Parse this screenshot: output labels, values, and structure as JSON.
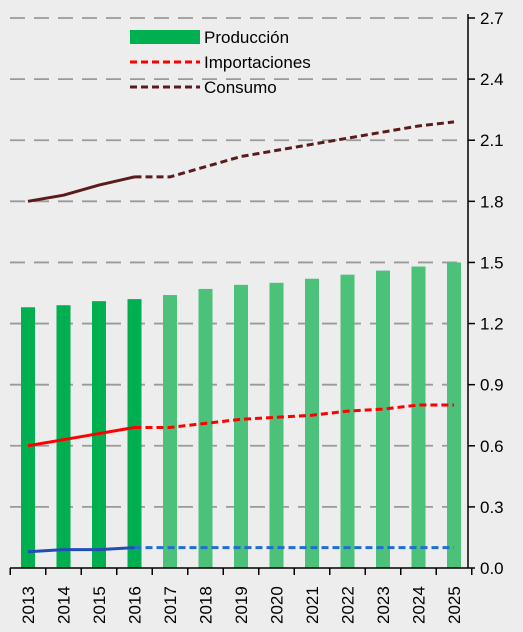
{
  "chart_data": {
    "type": "bar",
    "title": "",
    "xlabel": "",
    "ylabel": "",
    "categories": [
      "2013",
      "2014",
      "2015",
      "2016",
      "2017",
      "2018",
      "2019",
      "2020",
      "2021",
      "2022",
      "2023",
      "2024",
      "2025"
    ],
    "ylim": [
      0,
      2.7
    ],
    "y_ticks": [
      "0.0",
      "0.3",
      "0.6",
      "0.9",
      "1.2",
      "1.5",
      "1.8",
      "2.1",
      "2.4",
      "2.7"
    ],
    "y_axis_side": "right",
    "grid": "horizontal dashed",
    "legend_position": "top-center",
    "legend": [
      {
        "label": "Producción",
        "style": "bar"
      },
      {
        "label": "Importaciones",
        "style": "dashed-line"
      },
      {
        "label": "Consumo",
        "style": "dashed-line"
      }
    ],
    "projection_start_index": 3,
    "series": [
      {
        "name": "Producción",
        "type": "bar",
        "color": "#00b050",
        "projection_color": "#4cc17a",
        "values": [
          1.28,
          1.29,
          1.31,
          1.32,
          1.34,
          1.37,
          1.39,
          1.4,
          1.42,
          1.44,
          1.46,
          1.48,
          1.5
        ]
      },
      {
        "name": "Importaciones",
        "type": "line",
        "color": "#ff0000",
        "values": [
          0.6,
          0.63,
          0.66,
          0.69,
          0.69,
          0.71,
          0.73,
          0.74,
          0.75,
          0.77,
          0.78,
          0.8,
          0.8
        ]
      },
      {
        "name": "Consumo",
        "type": "line",
        "color": "#5b1b1b",
        "values": [
          1.8,
          1.83,
          1.88,
          1.92,
          1.92,
          1.97,
          2.02,
          2.05,
          2.08,
          2.11,
          2.14,
          2.17,
          2.19
        ]
      },
      {
        "name": "",
        "type": "line",
        "color": "#1f4fb5",
        "projection_color": "#1f6fd0",
        "values": [
          0.08,
          0.09,
          0.09,
          0.1,
          0.1,
          0.1,
          0.1,
          0.1,
          0.1,
          0.1,
          0.1,
          0.1,
          0.1
        ]
      }
    ]
  }
}
